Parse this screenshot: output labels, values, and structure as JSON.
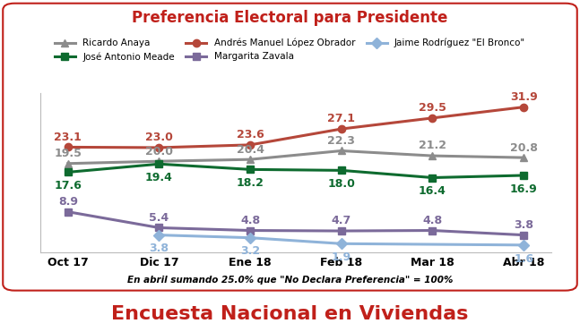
{
  "chart_data": {
    "type": "line",
    "title": "Preferencia Electoral para Presidente",
    "subtitle": "Encuesta Nacional en Viviendas",
    "annotations": [
      "En abril sumando 25.0% que \"No Declara Preferencia\" = 100%"
    ],
    "categories": [
      "Oct 17",
      "Dic 17",
      "Ene 18",
      "Feb 18",
      "Mar 18",
      "Abr 18"
    ],
    "series": [
      {
        "name": "Ricardo Anaya",
        "color": "#8c8c8c",
        "marker": "^",
        "values": [
          19.5,
          20.0,
          20.4,
          22.3,
          21.2,
          20.8
        ]
      },
      {
        "name": "José Antonio Meade",
        "color": "#0e6b2f",
        "marker": "s",
        "values": [
          17.6,
          19.4,
          18.2,
          18.0,
          16.4,
          16.9
        ]
      },
      {
        "name": "Andrés Manuel López Obrador",
        "color": "#b5473a",
        "marker": "o",
        "values": [
          23.1,
          23.0,
          23.6,
          27.1,
          29.5,
          31.9
        ]
      },
      {
        "name": "Margarita Zavala",
        "color": "#7b6a9a",
        "marker": "s",
        "values": [
          8.9,
          5.4,
          4.8,
          4.7,
          4.8,
          3.8
        ]
      },
      {
        "name": "Jaime Rodríguez \"El Bronco\"",
        "color": "#8fb3d9",
        "marker": "D",
        "values": [
          null,
          3.8,
          3.2,
          1.9,
          null,
          1.6
        ]
      }
    ],
    "ylim": [
      0,
      35
    ],
    "tick_labels": "x",
    "data_labels": true,
    "legend": "upper center"
  }
}
